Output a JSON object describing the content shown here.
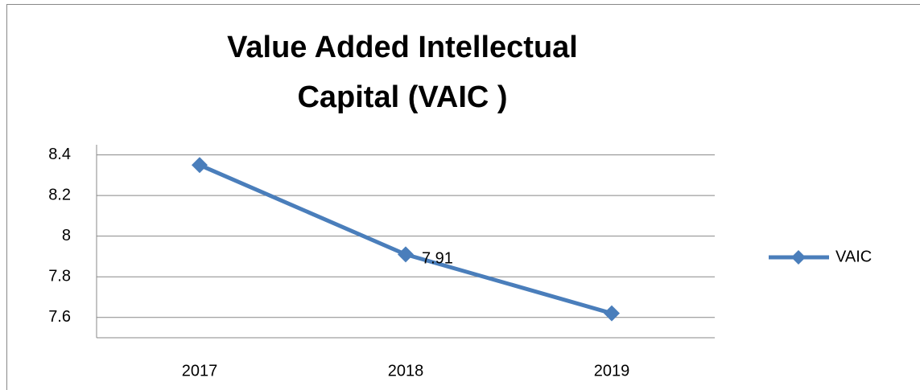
{
  "chart_data": {
    "type": "line",
    "title": "Value Added Intellectual Capital (VAIC )",
    "categories": [
      "2017",
      "2018",
      "2019"
    ],
    "series": [
      {
        "name": "VAIC",
        "color": "#4a7ebb",
        "values": [
          8.35,
          7.91,
          7.62
        ],
        "value_labels": [
          null,
          "7.91",
          null
        ]
      }
    ],
    "ylim": [
      7.5,
      8.45
    ],
    "yticks": [
      7.6,
      7.8,
      8,
      8.2,
      8.4
    ],
    "grid": true,
    "legend": "right"
  }
}
